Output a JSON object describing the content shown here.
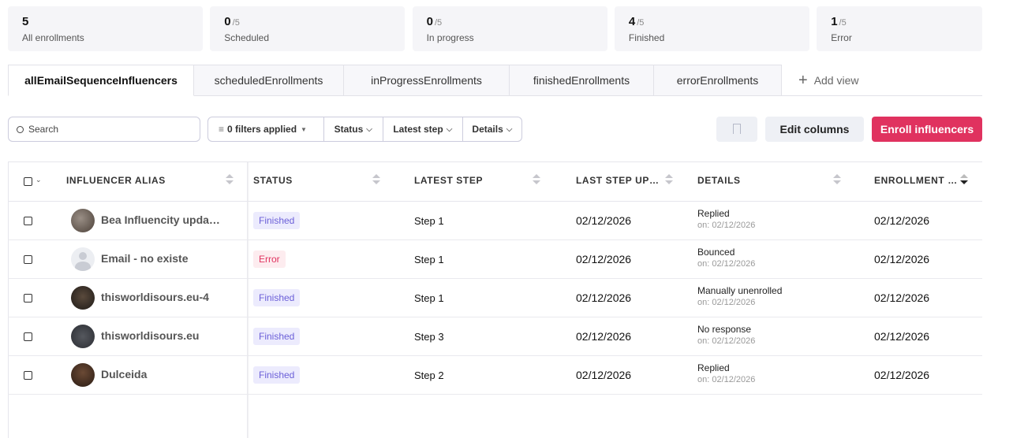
{
  "stats": [
    {
      "value": "5",
      "label": "All enrollments"
    },
    {
      "value": "0",
      "total": "/5",
      "label": "Scheduled"
    },
    {
      "value": "0",
      "total": "/5",
      "label": "In progress"
    },
    {
      "value": "4",
      "total": "/5",
      "label": "Finished"
    },
    {
      "value": "1",
      "total": "/5",
      "label": "Error"
    }
  ],
  "tabs": [
    "allEmailSequenceInfluencers",
    "scheduledEnrollments",
    "inProgressEnrollments",
    "finishedEnrollments",
    "errorEnrollments"
  ],
  "add_view": "Add view",
  "toolbar": {
    "search_placeholder": "Search",
    "filters": "0 filters applied",
    "filter_buttons": [
      "Status",
      "Latest step",
      "Details"
    ],
    "edit_columns": "Edit columns",
    "enroll": "Enroll influencers"
  },
  "table": {
    "headers": [
      "INFLUENCER ALIAS",
      "STATUS",
      "LATEST STEP",
      "LAST STEP UP…",
      "DETAILS",
      "ENROLLMENT …"
    ],
    "rows": [
      {
        "alias": "Bea Influencity upda…",
        "status": "Finished",
        "latest_step": "Step 1",
        "last_step_update": "02/12/2026",
        "details": "Replied",
        "details_date": "on: 02/12/2026",
        "enrollment": "02/12/2026"
      },
      {
        "alias": "Email - no existe",
        "status": "Error",
        "latest_step": "Step 1",
        "last_step_update": "02/12/2026",
        "details": "Bounced",
        "details_date": "on: 02/12/2026",
        "enrollment": "02/12/2026"
      },
      {
        "alias": "thisworldisours.eu-4",
        "status": "Finished",
        "latest_step": "Step 1",
        "last_step_update": "02/12/2026",
        "details": "Manually unenrolled",
        "details_date": "on: 02/12/2026",
        "enrollment": "02/12/2026"
      },
      {
        "alias": "thisworldisours.eu",
        "status": "Finished",
        "latest_step": "Step 3",
        "last_step_update": "02/12/2026",
        "details": "No response",
        "details_date": "on: 02/12/2026",
        "enrollment": "02/12/2026"
      },
      {
        "alias": "Dulceida",
        "status": "Finished",
        "latest_step": "Step 2",
        "last_step_update": "02/12/2026",
        "details": "Replied",
        "details_date": "on: 02/12/2026",
        "enrollment": "02/12/2026"
      }
    ]
  }
}
